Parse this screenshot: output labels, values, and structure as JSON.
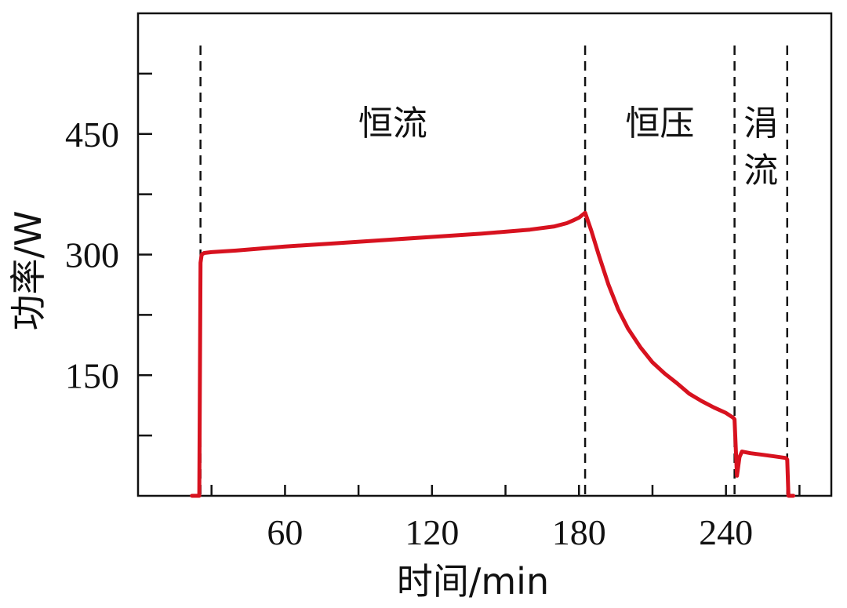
{
  "chart_data": {
    "type": "line",
    "title": "",
    "xlabel": "时间/min",
    "ylabel": "功率/W",
    "xlim": [
      0,
      283
    ],
    "ylim": [
      0,
      600
    ],
    "x_ticks": [
      60,
      120,
      180,
      240
    ],
    "x_minor_ticks": [
      30,
      90,
      150,
      210,
      270
    ],
    "y_ticks": [
      150,
      300,
      450
    ],
    "y_minor_ticks": [
      75,
      225,
      375,
      525
    ],
    "grid": false,
    "line_color": "#d7121f",
    "phase_boundaries": [
      25.5,
      182.5,
      243.5,
      265.0
    ],
    "phases": [
      {
        "label": "恒流",
        "x_start": 25.5,
        "x_end": 182.5
      },
      {
        "label": "恒压",
        "x_start": 182.5,
        "x_end": 243.5
      },
      {
        "label": "涓流",
        "x_start": 243.5,
        "x_end": 265.0
      }
    ],
    "series": [
      {
        "name": "",
        "x": [
          22,
          25,
          25.5,
          26,
          27,
          30,
          40,
          60,
          80,
          100,
          120,
          140,
          160,
          170,
          175,
          178,
          180,
          182.5,
          185,
          188,
          192,
          196,
          200,
          205,
          210,
          215,
          220,
          225,
          230,
          235,
          240,
          243,
          243.5,
          244.5,
          245.5,
          246.5,
          250,
          255,
          260,
          264.5,
          265,
          265.5,
          267.5
        ],
        "y": [
          0,
          0,
          290,
          300,
          302,
          303,
          305,
          310,
          314,
          318,
          322,
          326,
          331,
          335,
          339,
          343,
          346,
          352,
          330,
          300,
          263,
          232,
          208,
          185,
          166,
          152,
          140,
          127,
          118,
          110,
          103,
          97,
          95,
          25,
          48,
          55,
          53,
          51,
          49,
          47,
          45,
          0,
          0
        ]
      }
    ]
  }
}
